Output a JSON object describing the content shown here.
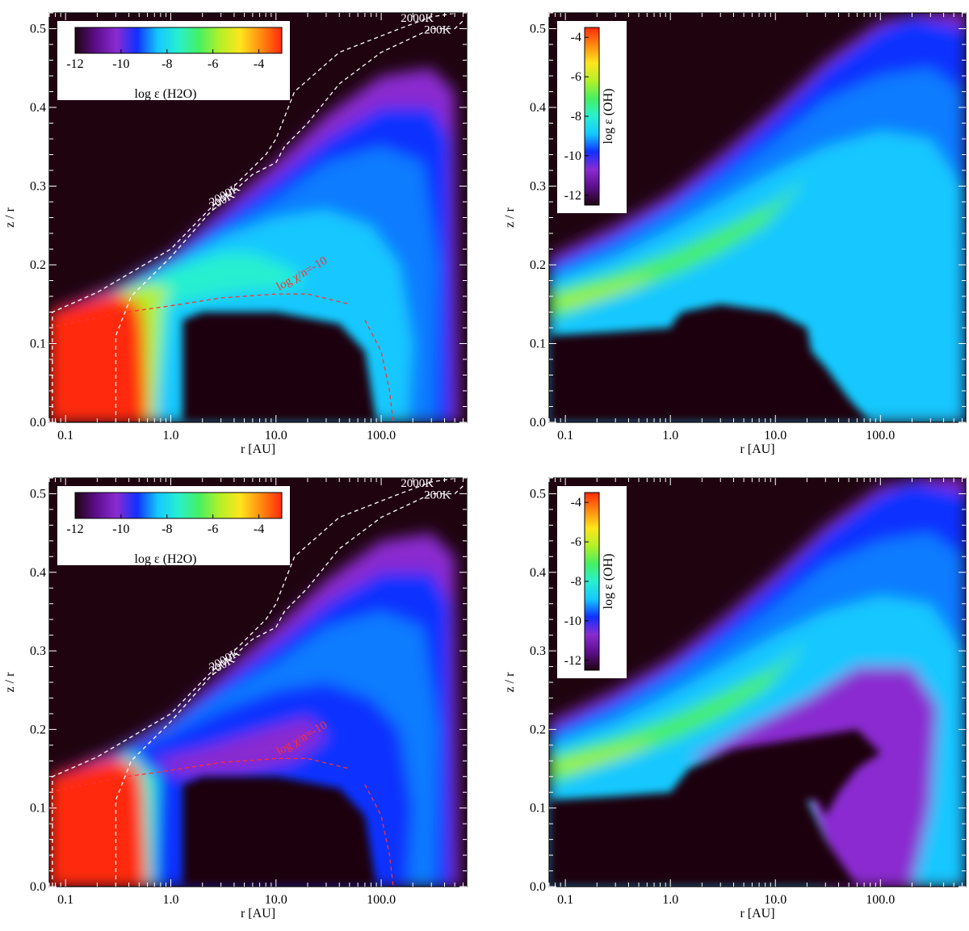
{
  "chart_data": [
    {
      "type": "heatmap",
      "species": "H2O",
      "xlabel": "r [AU]",
      "ylabel": "z / r",
      "xscale": "log",
      "xlim": [
        0.07,
        650
      ],
      "ylim": [
        0.0,
        0.52
      ],
      "xticks": [
        {
          "value": 0.1,
          "label": "0.1"
        },
        {
          "value": 1,
          "label": "1.0"
        },
        {
          "value": 10,
          "label": "10.0"
        },
        {
          "value": 100,
          "label": "100.0"
        }
      ],
      "yticks": [
        {
          "value": 0.0,
          "label": "0.0"
        },
        {
          "value": 0.1,
          "label": "0.1"
        },
        {
          "value": 0.2,
          "label": "0.2"
        },
        {
          "value": 0.3,
          "label": "0.3"
        },
        {
          "value": 0.4,
          "label": "0.4"
        },
        {
          "value": 0.5,
          "label": "0.5"
        }
      ],
      "colorbar": {
        "title": "log ε (H2O)",
        "orientation": "horizontal",
        "placement": "top-left",
        "range": [
          -12,
          -3
        ],
        "ticks": [
          {
            "value": -12,
            "label": "-12"
          },
          {
            "value": -10,
            "label": "-10"
          },
          {
            "value": -8,
            "label": "-8"
          },
          {
            "value": -6,
            "label": "-6"
          },
          {
            "value": -4,
            "label": "-4"
          }
        ]
      },
      "contours": [
        {
          "label": "200K",
          "color": "#ffffff",
          "style": "dashed",
          "points": [
            [
              0.3,
              0.0
            ],
            [
              0.3,
              0.11
            ],
            [
              0.42,
              0.16
            ],
            [
              1,
              0.21
            ],
            [
              2.3,
              0.265
            ],
            [
              6,
              0.315
            ],
            [
              10,
              0.33
            ],
            [
              12,
              0.35
            ],
            [
              20,
              0.38
            ],
            [
              40,
              0.43
            ],
            [
              100,
              0.47
            ],
            [
              300,
              0.5
            ],
            [
              500,
              0.5
            ],
            [
              600,
              0.51
            ]
          ]
        },
        {
          "label": "2000K",
          "color": "#ffffff",
          "style": "dashed",
          "points": [
            [
              0.075,
              0.0
            ],
            [
              0.075,
              0.14
            ],
            [
              0.2,
              0.165
            ],
            [
              1,
              0.22
            ],
            [
              2.3,
              0.27
            ],
            [
              4,
              0.3
            ],
            [
              8,
              0.34
            ],
            [
              10,
              0.36
            ],
            [
              15,
              0.42
            ],
            [
              40,
              0.47
            ],
            [
              150,
              0.5
            ],
            [
              300,
              0.515
            ],
            [
              520,
              0.52
            ]
          ]
        },
        {
          "label": "log χ/n=-10",
          "color": "#ff3030",
          "style": "dashed",
          "points": [
            [
              0.07,
              0.12
            ],
            [
              0.3,
              0.138
            ],
            [
              1,
              0.148
            ],
            [
              3,
              0.158
            ],
            [
              10,
              0.163
            ],
            [
              20,
              0.163
            ],
            [
              50,
              0.15
            ]
          ]
        },
        {
          "label": "",
          "color": "#ff3030",
          "style": "dashed",
          "points": [
            [
              70,
              0.13
            ],
            [
              100,
              0.09
            ],
            [
              120,
              0.04
            ],
            [
              130,
              0.0
            ]
          ]
        }
      ]
    },
    {
      "type": "heatmap",
      "species": "OH",
      "xlabel": "r [AU]",
      "ylabel": "z / r",
      "xscale": "log",
      "xlim": [
        0.07,
        650
      ],
      "ylim": [
        0.0,
        0.52
      ],
      "xticks": [
        {
          "value": 0.1,
          "label": "0.1"
        },
        {
          "value": 1,
          "label": "1.0"
        },
        {
          "value": 10,
          "label": "10.0"
        },
        {
          "value": 100,
          "label": "100.0"
        }
      ],
      "yticks": [
        {
          "value": 0.0,
          "label": "0.0"
        },
        {
          "value": 0.1,
          "label": "0.1"
        },
        {
          "value": 0.2,
          "label": "0.2"
        },
        {
          "value": 0.3,
          "label": "0.3"
        },
        {
          "value": 0.4,
          "label": "0.4"
        },
        {
          "value": 0.5,
          "label": "0.5"
        }
      ],
      "colorbar": {
        "title": "log ε (OH)",
        "orientation": "vertical",
        "placement": "top-left",
        "range": [
          -12.5,
          -3.5
        ],
        "ticks": [
          {
            "value": -4,
            "label": "-4"
          },
          {
            "value": -6,
            "label": "-6"
          },
          {
            "value": -8,
            "label": "-8"
          },
          {
            "value": -10,
            "label": "-10"
          },
          {
            "value": -12,
            "label": "-12"
          }
        ]
      },
      "contours": []
    },
    {
      "type": "heatmap",
      "species": "H2O",
      "xlabel": "r [AU]",
      "ylabel": "z / r",
      "xscale": "log",
      "xlim": [
        0.07,
        650
      ],
      "ylim": [
        0.0,
        0.52
      ],
      "xticks": [
        {
          "value": 0.1,
          "label": "0.1"
        },
        {
          "value": 1,
          "label": "1.0"
        },
        {
          "value": 10,
          "label": "10.0"
        },
        {
          "value": 100,
          "label": "100.0"
        }
      ],
      "yticks": [
        {
          "value": 0.0,
          "label": "0.0"
        },
        {
          "value": 0.1,
          "label": "0.1"
        },
        {
          "value": 0.2,
          "label": "0.2"
        },
        {
          "value": 0.3,
          "label": "0.3"
        },
        {
          "value": 0.4,
          "label": "0.4"
        },
        {
          "value": 0.5,
          "label": "0.5"
        }
      ],
      "colorbar": {
        "title": "log ε (H2O)",
        "orientation": "horizontal",
        "placement": "top-left",
        "range": [
          -12,
          -3
        ],
        "ticks": [
          {
            "value": -12,
            "label": "-12"
          },
          {
            "value": -10,
            "label": "-10"
          },
          {
            "value": -8,
            "label": "-8"
          },
          {
            "value": -6,
            "label": "-6"
          },
          {
            "value": -4,
            "label": "-4"
          }
        ]
      },
      "contours": [
        {
          "label": "200K",
          "color": "#ffffff",
          "style": "dashed",
          "points": [
            [
              0.3,
              0.0
            ],
            [
              0.3,
              0.11
            ],
            [
              0.42,
              0.16
            ],
            [
              1,
              0.21
            ],
            [
              2.3,
              0.265
            ],
            [
              6,
              0.315
            ],
            [
              10,
              0.33
            ],
            [
              12,
              0.35
            ],
            [
              20,
              0.38
            ],
            [
              40,
              0.43
            ],
            [
              100,
              0.47
            ],
            [
              300,
              0.5
            ],
            [
              500,
              0.5
            ],
            [
              600,
              0.51
            ]
          ]
        },
        {
          "label": "2000K",
          "color": "#ffffff",
          "style": "dashed",
          "points": [
            [
              0.075,
              0.0
            ],
            [
              0.075,
              0.14
            ],
            [
              0.2,
              0.165
            ],
            [
              1,
              0.22
            ],
            [
              2.3,
              0.27
            ],
            [
              4,
              0.3
            ],
            [
              8,
              0.34
            ],
            [
              10,
              0.36
            ],
            [
              15,
              0.42
            ],
            [
              40,
              0.47
            ],
            [
              150,
              0.5
            ],
            [
              300,
              0.515
            ],
            [
              520,
              0.52
            ]
          ]
        },
        {
          "label": "log χ/n=-10",
          "color": "#ff3030",
          "style": "dashed",
          "points": [
            [
              0.07,
              0.12
            ],
            [
              0.3,
              0.138
            ],
            [
              1,
              0.148
            ],
            [
              3,
              0.158
            ],
            [
              10,
              0.163
            ],
            [
              20,
              0.163
            ],
            [
              50,
              0.15
            ]
          ]
        },
        {
          "label": "",
          "color": "#ff3030",
          "style": "dashed",
          "points": [
            [
              70,
              0.13
            ],
            [
              100,
              0.09
            ],
            [
              120,
              0.04
            ],
            [
              130,
              0.0
            ]
          ]
        }
      ]
    },
    {
      "type": "heatmap",
      "species": "OH",
      "xlabel": "r [AU]",
      "ylabel": "z / r",
      "xscale": "log",
      "xlim": [
        0.07,
        650
      ],
      "ylim": [
        0.0,
        0.52
      ],
      "xticks": [
        {
          "value": 0.1,
          "label": "0.1"
        },
        {
          "value": 1,
          "label": "1.0"
        },
        {
          "value": 10,
          "label": "10.0"
        },
        {
          "value": 100,
          "label": "100.0"
        }
      ],
      "yticks": [
        {
          "value": 0.0,
          "label": "0.0"
        },
        {
          "value": 0.1,
          "label": "0.1"
        },
        {
          "value": 0.2,
          "label": "0.2"
        },
        {
          "value": 0.3,
          "label": "0.3"
        },
        {
          "value": 0.4,
          "label": "0.4"
        },
        {
          "value": 0.5,
          "label": "0.5"
        }
      ],
      "colorbar": {
        "title": "log ε (OH)",
        "orientation": "vertical",
        "placement": "top-left",
        "range": [
          -12.5,
          -3.5
        ],
        "ticks": [
          {
            "value": -4,
            "label": "-4"
          },
          {
            "value": -6,
            "label": "-6"
          },
          {
            "value": -8,
            "label": "-8"
          },
          {
            "value": -10,
            "label": "-10"
          },
          {
            "value": -12,
            "label": "-12"
          }
        ]
      },
      "contours": []
    }
  ],
  "colors": {
    "background": "#1f0410",
    "colormap": [
      "#1f0410",
      "#5b0e8a",
      "#8a2bd0",
      "#1030ff",
      "#0a7cff",
      "#14c8ff",
      "#28f0d0",
      "#46f060",
      "#b4f028",
      "#ffe51c",
      "#ff8a10",
      "#ff2a0a"
    ]
  }
}
